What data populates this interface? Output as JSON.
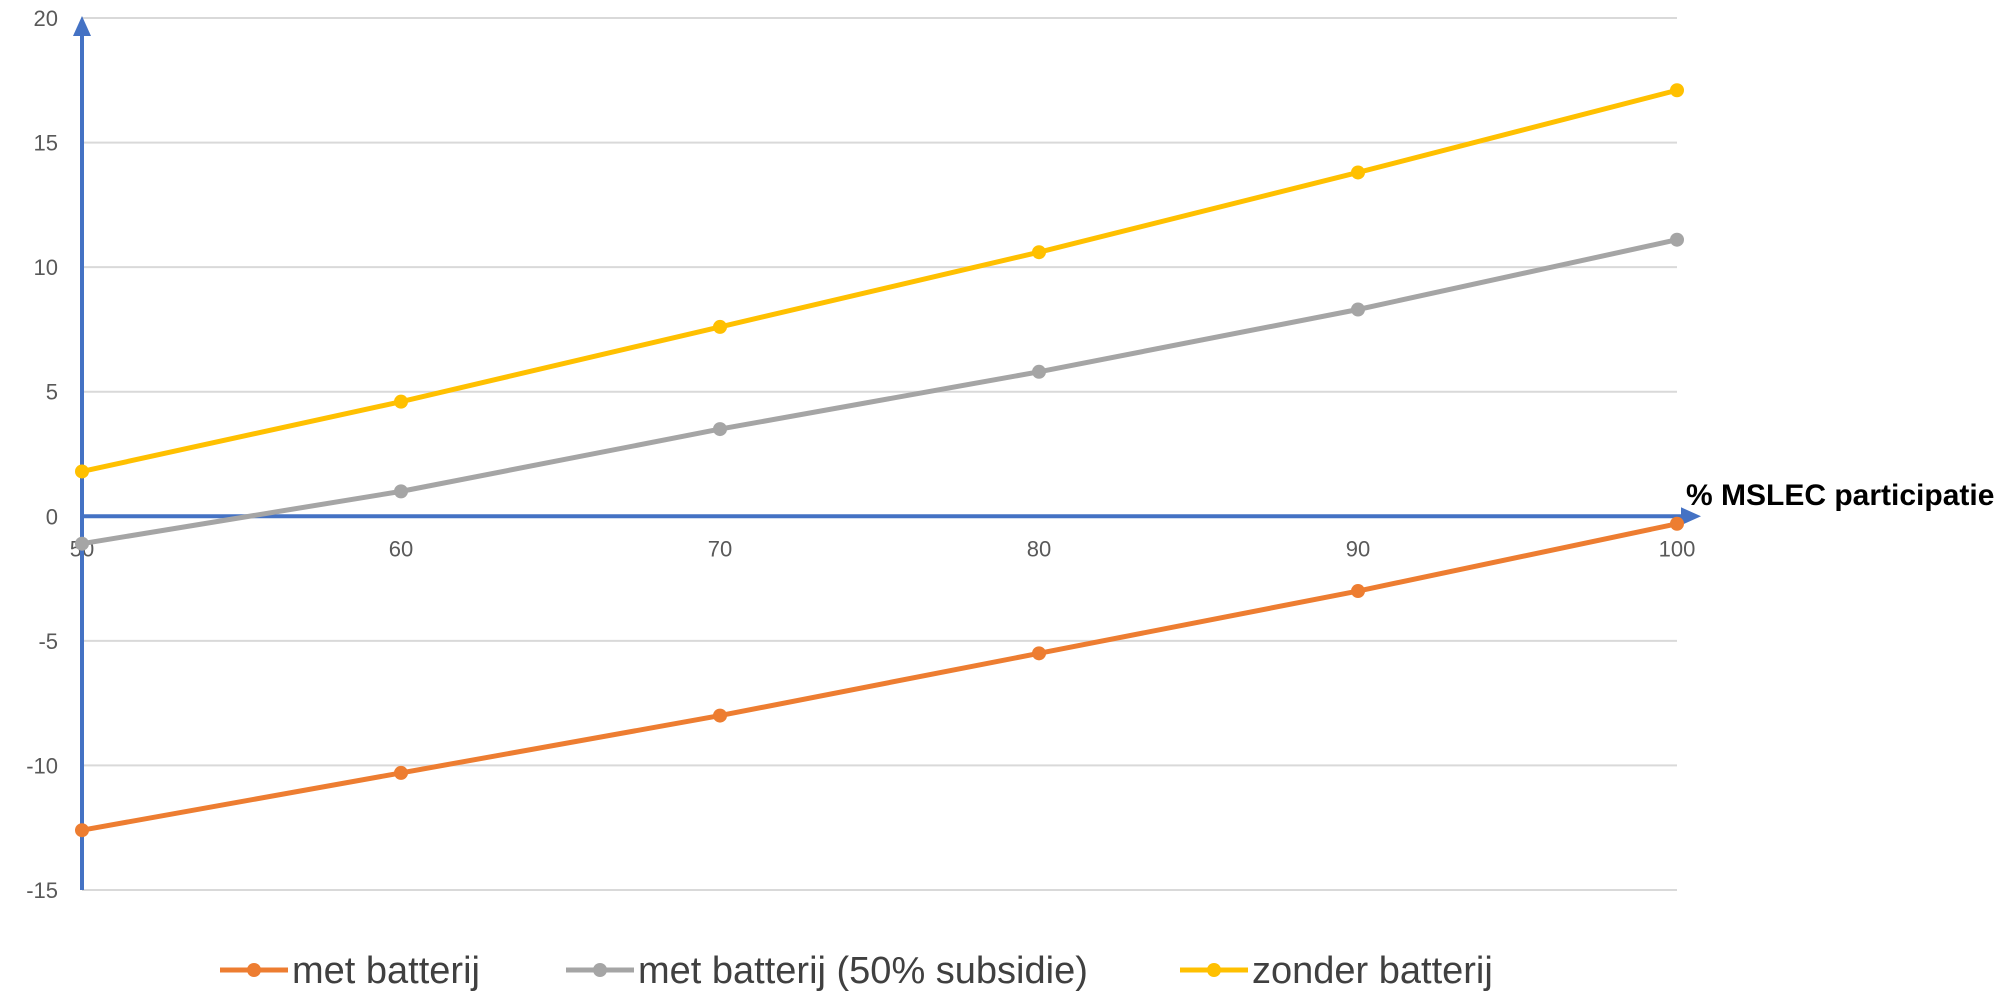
{
  "chart_data": {
    "type": "line",
    "title": "",
    "xlabel": "% MSLEC participatie",
    "ylabel": "",
    "x": [
      50,
      60,
      70,
      80,
      90,
      100
    ],
    "x_tick_labels": [
      "50",
      "60",
      "70",
      "80",
      "90",
      "100"
    ],
    "y_tick_labels": [
      "20",
      "15",
      "10",
      "5",
      "0",
      "-5",
      "-10",
      "-15"
    ],
    "ylim": [
      -15,
      20
    ],
    "xlim": [
      50,
      100
    ],
    "grid": true,
    "legend_position": "bottom",
    "axis_color": "#4472C4",
    "grid_color": "#D9D9D9",
    "series": [
      {
        "name": "met batterij",
        "color": "#ED7D31",
        "values": [
          -12.6,
          -10.3,
          -8.0,
          -5.5,
          -3.0,
          -0.3
        ]
      },
      {
        "name": "met batterij (50% subsidie)",
        "color": "#A5A5A5",
        "values": [
          -1.1,
          1.0,
          3.5,
          5.8,
          8.3,
          11.1
        ]
      },
      {
        "name": "zonder batterij",
        "color": "#FFC000",
        "values": [
          1.8,
          4.6,
          7.6,
          10.6,
          13.8,
          17.1
        ]
      }
    ]
  }
}
